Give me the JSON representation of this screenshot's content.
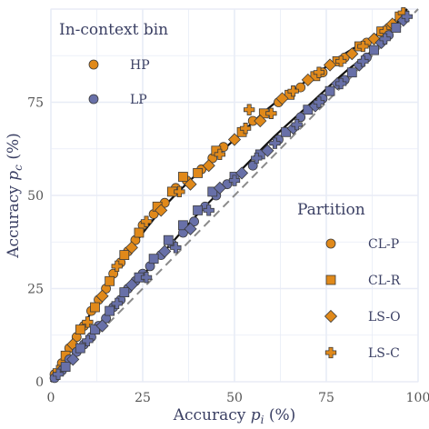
{
  "chart_data": {
    "type": "scatter",
    "xlabel": "Accuracy p_i (%)",
    "ylabel": "Accuracy p_c (%)",
    "xlim": [
      0,
      100
    ],
    "ylim": [
      0,
      100
    ],
    "x_ticks": [
      "0",
      "25",
      "50",
      "75",
      "100"
    ],
    "y_ticks": [
      "0",
      "25",
      "50",
      "75"
    ],
    "grid": true,
    "colors": {
      "HP": "#e0891a",
      "LP": "#6870a8",
      "edge": "#3b3b3b",
      "grid": "#e8ecf6"
    },
    "legend_bin": {
      "title": "In-context bin",
      "position": "top-left",
      "items": [
        {
          "label": "HP",
          "key": "HP"
        },
        {
          "label": "LP",
          "key": "LP"
        }
      ]
    },
    "legend_partition": {
      "title": "Partition",
      "position": "right",
      "items": [
        {
          "label": "CL-P",
          "marker": "circle"
        },
        {
          "label": "CL-R",
          "marker": "square"
        },
        {
          "label": "LS-O",
          "marker": "diamond"
        },
        {
          "label": "LS-C",
          "marker": "cross"
        }
      ]
    },
    "diagonal": {
      "from": [
        0,
        0
      ],
      "to": [
        100,
        100
      ],
      "style": "dashed",
      "color": "#8a8a8a"
    },
    "fit_curves": [
      {
        "bin": "HP",
        "points": [
          [
            0,
            0
          ],
          [
            10,
            17
          ],
          [
            20,
            33
          ],
          [
            30,
            46
          ],
          [
            40,
            56
          ],
          [
            50,
            65
          ],
          [
            60,
            74
          ],
          [
            70,
            81
          ],
          [
            80,
            88
          ],
          [
            90,
            94
          ],
          [
            97,
            100
          ]
        ]
      },
      {
        "bin": "LP",
        "points": [
          [
            0,
            0
          ],
          [
            10,
            12
          ],
          [
            20,
            23
          ],
          [
            30,
            34
          ],
          [
            40,
            45
          ],
          [
            50,
            55
          ],
          [
            60,
            65
          ],
          [
            70,
            74
          ],
          [
            80,
            83
          ],
          [
            90,
            91
          ],
          [
            97,
            100
          ]
        ]
      }
    ],
    "series": [
      {
        "bin": "HP",
        "marker": "circle",
        "points": [
          [
            1,
            2
          ],
          [
            3,
            5
          ],
          [
            5,
            9
          ],
          [
            7,
            12
          ],
          [
            9,
            15
          ],
          [
            11,
            19
          ],
          [
            13,
            22
          ],
          [
            15,
            25
          ],
          [
            17,
            29
          ],
          [
            19,
            32
          ],
          [
            21,
            35
          ],
          [
            23,
            38
          ],
          [
            25,
            42
          ],
          [
            28,
            45
          ],
          [
            31,
            48
          ],
          [
            34,
            52
          ],
          [
            37,
            54
          ],
          [
            41,
            57
          ],
          [
            44,
            60
          ],
          [
            47,
            63
          ],
          [
            55,
            70
          ],
          [
            62,
            75
          ],
          [
            68,
            79
          ],
          [
            74,
            83
          ],
          [
            80,
            87
          ],
          [
            86,
            91
          ],
          [
            92,
            95
          ]
        ]
      },
      {
        "bin": "HP",
        "marker": "square",
        "points": [
          [
            4,
            7
          ],
          [
            8,
            14
          ],
          [
            12,
            20
          ],
          [
            16,
            27
          ],
          [
            20,
            34
          ],
          [
            24,
            40
          ],
          [
            29,
            47
          ],
          [
            33,
            51
          ],
          [
            36,
            55
          ],
          [
            40,
            56
          ],
          [
            45,
            62
          ],
          [
            52,
            67
          ],
          [
            58,
            72
          ],
          [
            65,
            77
          ],
          [
            72,
            82
          ],
          [
            78,
            86
          ],
          [
            84,
            90
          ],
          [
            90,
            94
          ],
          [
            95,
            98
          ]
        ]
      },
      {
        "bin": "HP",
        "marker": "diamond",
        "points": [
          [
            6,
            10
          ],
          [
            14,
            23
          ],
          [
            22,
            36
          ],
          [
            30,
            46
          ],
          [
            38,
            53
          ],
          [
            43,
            58
          ],
          [
            50,
            65
          ],
          [
            57,
            70
          ],
          [
            63,
            76
          ],
          [
            70,
            81
          ],
          [
            76,
            85
          ],
          [
            82,
            88
          ],
          [
            88,
            92
          ],
          [
            93,
            96
          ]
        ]
      },
      {
        "bin": "HP",
        "marker": "cross",
        "points": [
          [
            2,
            3
          ],
          [
            10,
            16
          ],
          [
            18,
            31
          ],
          [
            26,
            43
          ],
          [
            35,
            51
          ],
          [
            46,
            61
          ],
          [
            53,
            68
          ],
          [
            54,
            73
          ],
          [
            60,
            72
          ],
          [
            66,
            78
          ],
          [
            73,
            83
          ],
          [
            79,
            86
          ],
          [
            85,
            90
          ],
          [
            91,
            94
          ],
          [
            96,
            99
          ]
        ]
      },
      {
        "bin": "LP",
        "marker": "circle",
        "points": [
          [
            1,
            1
          ],
          [
            3,
            3
          ],
          [
            5,
            6
          ],
          [
            7,
            8
          ],
          [
            9,
            10
          ],
          [
            11,
            12
          ],
          [
            13,
            15
          ],
          [
            15,
            17
          ],
          [
            17,
            20
          ],
          [
            19,
            22
          ],
          [
            21,
            25
          ],
          [
            23,
            27
          ],
          [
            25,
            29
          ],
          [
            27,
            31
          ],
          [
            30,
            34
          ],
          [
            33,
            37
          ],
          [
            36,
            40
          ],
          [
            39,
            43
          ],
          [
            42,
            47
          ],
          [
            45,
            50
          ],
          [
            48,
            53
          ],
          [
            55,
            58
          ],
          [
            62,
            65
          ],
          [
            68,
            71
          ],
          [
            74,
            76
          ],
          [
            80,
            81
          ],
          [
            86,
            87
          ],
          [
            92,
            93
          ]
        ]
      },
      {
        "bin": "LP",
        "marker": "square",
        "points": [
          [
            4,
            4
          ],
          [
            8,
            9
          ],
          [
            12,
            14
          ],
          [
            16,
            19
          ],
          [
            20,
            24
          ],
          [
            24,
            28
          ],
          [
            28,
            33
          ],
          [
            32,
            38
          ],
          [
            36,
            42
          ],
          [
            40,
            46
          ],
          [
            44,
            51
          ],
          [
            50,
            55
          ],
          [
            57,
            61
          ],
          [
            64,
            67
          ],
          [
            70,
            73
          ],
          [
            76,
            78
          ],
          [
            82,
            83
          ],
          [
            88,
            89
          ],
          [
            94,
            95
          ]
        ]
      },
      {
        "bin": "LP",
        "marker": "diamond",
        "points": [
          [
            6,
            6
          ],
          [
            14,
            15
          ],
          [
            22,
            26
          ],
          [
            31,
            35
          ],
          [
            38,
            41
          ],
          [
            46,
            52
          ],
          [
            52,
            56
          ],
          [
            59,
            62
          ],
          [
            66,
            68
          ],
          [
            72,
            74
          ],
          [
            78,
            80
          ],
          [
            84,
            85
          ],
          [
            90,
            91
          ],
          [
            96,
            97
          ]
        ]
      },
      {
        "bin": "LP",
        "marker": "cross",
        "points": [
          [
            2,
            2
          ],
          [
            10,
            11
          ],
          [
            18,
            21
          ],
          [
            26,
            28
          ],
          [
            34,
            36
          ],
          [
            43,
            46
          ],
          [
            50,
            54
          ],
          [
            56,
            60
          ],
          [
            61,
            64
          ],
          [
            67,
            69
          ],
          [
            73,
            75
          ],
          [
            79,
            80
          ],
          [
            85,
            86
          ],
          [
            91,
            92
          ],
          [
            97,
            98
          ]
        ]
      }
    ]
  }
}
